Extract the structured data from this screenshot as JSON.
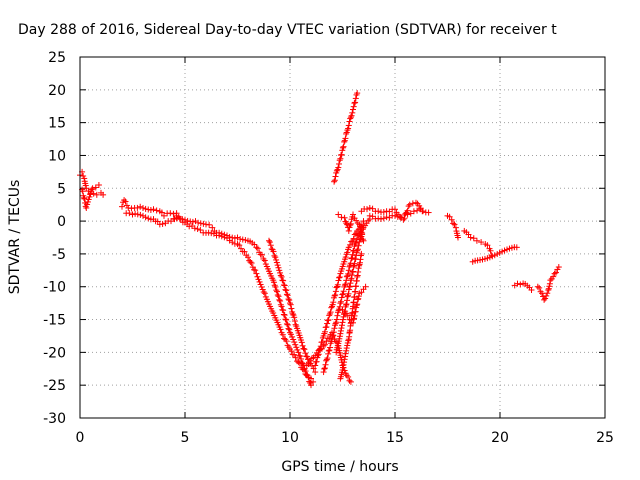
{
  "chart_data": {
    "type": "scatter",
    "title": "Day 288 of 2016, Sidereal Day-to-day VTEC variation (SDTVAR) for receiver t",
    "xlabel": "GPS time / hours",
    "ylabel": "SDTVAR / TECUs",
    "xlim": [
      0,
      25
    ],
    "ylim": [
      -30,
      25
    ],
    "xticks": [
      0,
      5,
      10,
      15,
      20,
      25
    ],
    "yticks": [
      -30,
      -25,
      -20,
      -15,
      -10,
      -5,
      0,
      5,
      10,
      15,
      20,
      25
    ],
    "grid": true,
    "marker": "plus",
    "color": "#ff0000",
    "tracks": [
      [
        [
          0.0,
          7.0
        ],
        [
          0.1,
          7.5
        ],
        [
          0.2,
          6.5
        ],
        [
          0.3,
          5.0
        ],
        [
          0.5,
          4.2
        ],
        [
          0.8,
          4.0
        ],
        [
          1.0,
          4.3
        ],
        [
          1.1,
          4.0
        ]
      ],
      [
        [
          0.1,
          4.8
        ],
        [
          0.3,
          2.0
        ],
        [
          0.6,
          5.0
        ],
        [
          0.9,
          5.5
        ]
      ],
      [
        [
          2.0,
          2.2
        ],
        [
          2.1,
          3.2
        ],
        [
          2.3,
          2.0
        ],
        [
          2.6,
          2.0
        ],
        [
          3.0,
          2.0
        ],
        [
          3.5,
          1.8
        ],
        [
          3.8,
          1.5
        ],
        [
          4.0,
          0.8
        ],
        [
          4.3,
          1.2
        ],
        [
          4.6,
          1.2
        ]
      ],
      [
        [
          2.2,
          1.2
        ],
        [
          2.5,
          1.0
        ],
        [
          3.0,
          0.8
        ],
        [
          3.5,
          0.3
        ],
        [
          3.8,
          -0.5
        ],
        [
          4.2,
          0.0
        ],
        [
          4.6,
          0.5
        ]
      ],
      [
        [
          4.5,
          0.3
        ],
        [
          5.0,
          0.2
        ],
        [
          5.5,
          0.0
        ],
        [
          6.0,
          -0.5
        ],
        [
          6.3,
          -1.0
        ],
        [
          6.5,
          -1.8
        ],
        [
          7.0,
          -2.2
        ],
        [
          7.5,
          -2.5
        ],
        [
          8.0,
          -3.0
        ],
        [
          8.4,
          -4.0
        ],
        [
          8.8,
          -6.0
        ],
        [
          9.2,
          -9.0
        ],
        [
          9.6,
          -13.0
        ],
        [
          10.0,
          -17.0
        ],
        [
          10.4,
          -20.0
        ],
        [
          10.7,
          -22.5
        ],
        [
          11.0,
          -25.0
        ]
      ],
      [
        [
          4.6,
          0.8
        ],
        [
          5.2,
          -0.8
        ],
        [
          5.6,
          -1.2
        ],
        [
          6.0,
          -1.8
        ],
        [
          6.5,
          -2.2
        ],
        [
          7.0,
          -2.6
        ],
        [
          7.5,
          -3.5
        ],
        [
          8.0,
          -5.5
        ],
        [
          8.4,
          -8.0
        ],
        [
          8.8,
          -11.0
        ],
        [
          9.2,
          -14.0
        ],
        [
          9.6,
          -17.0
        ],
        [
          10.0,
          -19.5
        ],
        [
          10.4,
          -21.5
        ],
        [
          10.8,
          -23.5
        ],
        [
          11.1,
          -24.5
        ]
      ],
      [
        [
          9.0,
          -3.0
        ],
        [
          9.3,
          -5.5
        ],
        [
          9.6,
          -8.5
        ],
        [
          10.0,
          -12.5
        ],
        [
          10.3,
          -16.0
        ],
        [
          10.6,
          -19.0
        ],
        [
          10.9,
          -21.5
        ],
        [
          11.2,
          -23.0
        ]
      ],
      [
        [
          10.8,
          -22.0
        ],
        [
          11.2,
          -20.5
        ],
        [
          11.6,
          -19.0
        ],
        [
          12.0,
          -17.0
        ],
        [
          12.3,
          -19.0
        ],
        [
          12.5,
          -22.0
        ],
        [
          12.7,
          -23.5
        ],
        [
          12.9,
          -24.5
        ]
      ],
      [
        [
          11.2,
          -22.0
        ],
        [
          11.6,
          -17.5
        ],
        [
          12.0,
          -13.0
        ],
        [
          12.4,
          -8.0
        ],
        [
          12.8,
          -4.0
        ],
        [
          13.2,
          -1.5
        ],
        [
          13.5,
          0.0
        ]
      ],
      [
        [
          11.6,
          -23.0
        ],
        [
          12.0,
          -18.0
        ],
        [
          12.4,
          -12.5
        ],
        [
          12.8,
          -7.5
        ],
        [
          13.1,
          -3.5
        ],
        [
          13.4,
          -1.0
        ]
      ],
      [
        [
          12.2,
          -20.0
        ],
        [
          12.6,
          -14.0
        ],
        [
          12.9,
          -9.0
        ],
        [
          13.2,
          -4.5
        ],
        [
          13.5,
          -1.0
        ],
        [
          13.8,
          0.3
        ]
      ],
      [
        [
          12.4,
          -24.0
        ],
        [
          12.8,
          -18.0
        ],
        [
          13.0,
          -13.0
        ],
        [
          13.2,
          -8.5
        ],
        [
          13.4,
          -5.0
        ]
      ],
      [
        [
          12.3,
          1.0
        ],
        [
          12.6,
          0.5
        ],
        [
          12.8,
          -1.5
        ],
        [
          13.0,
          1.0
        ],
        [
          13.3,
          -0.5
        ],
        [
          13.5,
          -3.0
        ]
      ],
      [
        [
          12.5,
          -13.5
        ],
        [
          13.0,
          -15.5
        ],
        [
          13.3,
          -11.0
        ],
        [
          13.6,
          -10.0
        ]
      ],
      [
        [
          12.1,
          6.0
        ],
        [
          12.4,
          9.5
        ],
        [
          12.7,
          13.5
        ],
        [
          13.0,
          17.0
        ],
        [
          13.2,
          19.5
        ]
      ],
      [
        [
          13.4,
          1.5
        ],
        [
          13.8,
          2.0
        ],
        [
          14.2,
          1.5
        ],
        [
          14.6,
          1.5
        ],
        [
          15.0,
          1.8
        ],
        [
          15.3,
          0.5
        ],
        [
          15.6,
          1.0
        ],
        [
          15.9,
          1.5
        ],
        [
          16.2,
          1.8
        ],
        [
          16.6,
          1.3
        ]
      ],
      [
        [
          13.8,
          0.8
        ],
        [
          14.2,
          0.4
        ],
        [
          14.6,
          0.6
        ],
        [
          15.0,
          0.8
        ],
        [
          15.4,
          0.2
        ],
        [
          15.7,
          2.5
        ],
        [
          16.0,
          2.8
        ],
        [
          16.3,
          1.5
        ]
      ],
      [
        [
          17.5,
          0.8
        ],
        [
          17.7,
          0.2
        ],
        [
          17.9,
          -1.0
        ],
        [
          18.0,
          -2.5
        ]
      ],
      [
        [
          18.3,
          -1.5
        ],
        [
          18.6,
          -2.5
        ],
        [
          18.9,
          -3.0
        ],
        [
          19.1,
          -3.2
        ],
        [
          19.3,
          -3.5
        ],
        [
          19.5,
          -4.2
        ],
        [
          19.6,
          -5.2
        ]
      ],
      [
        [
          18.7,
          -6.2
        ],
        [
          20.8,
          -4.0
        ]
      ],
      [
        [
          20.7,
          -9.8
        ],
        [
          21.1,
          -9.5
        ],
        [
          21.5,
          -10.5
        ]
      ],
      [
        [
          21.8,
          -10.0
        ],
        [
          22.0,
          -11.0
        ],
        [
          22.1,
          -12.0
        ],
        [
          22.3,
          -10.5
        ],
        [
          22.4,
          -9.0
        ],
        [
          22.6,
          -8.0
        ],
        [
          22.8,
          -7.0
        ]
      ]
    ]
  }
}
